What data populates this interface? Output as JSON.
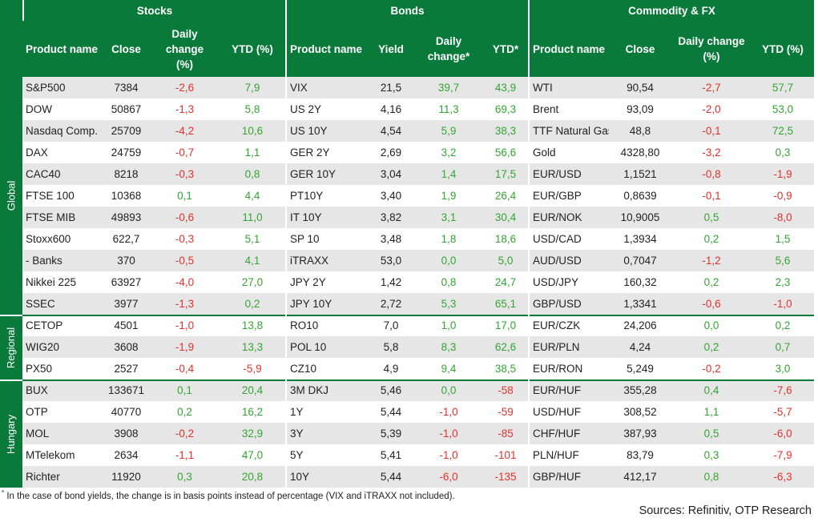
{
  "headers": {
    "stocks": "Stocks",
    "bonds": "Bonds",
    "commodity": "Commodity & FX",
    "stocks_cols": [
      "Product name",
      "Close",
      "Daily change (%)",
      "YTD (%)"
    ],
    "bonds_cols": [
      "Product name",
      "Yield",
      "Daily change*",
      "YTD*"
    ],
    "fx_cols": [
      "Product name",
      "Close",
      "Daily change (%)",
      "YTD (%)"
    ]
  },
  "groups": [
    {
      "label": "Global",
      "rows": [
        0,
        1,
        2,
        3,
        4,
        5,
        6,
        7,
        8,
        9,
        10
      ]
    },
    {
      "label": "Regional",
      "rows": [
        11,
        12,
        13
      ]
    },
    {
      "label": "Hungary",
      "rows": [
        14,
        15,
        16,
        17,
        18
      ]
    }
  ],
  "rows": [
    {
      "s": [
        "S&P500",
        "7384",
        "-2,6",
        "7,9"
      ],
      "b": [
        "VIX",
        "21,5",
        "39,7",
        "43,9"
      ],
      "f": [
        "WTI",
        "90,54",
        "-2,7",
        "57,7"
      ]
    },
    {
      "s": [
        "DOW",
        "50867",
        "-1,3",
        "5,8"
      ],
      "b": [
        "US 2Y",
        "4,16",
        "11,3",
        "69,3"
      ],
      "f": [
        "Brent",
        "93,09",
        "-2,0",
        "53,0"
      ]
    },
    {
      "s": [
        "Nasdaq Comp.",
        "25709",
        "-4,2",
        "10,6"
      ],
      "b": [
        "US 10Y",
        "4,54",
        "5,9",
        "38,3"
      ],
      "f": [
        "TTF Natural Gas",
        "48,8",
        "-0,1",
        "72,5"
      ]
    },
    {
      "s": [
        "DAX",
        "24759",
        "-0,7",
        "1,1"
      ],
      "b": [
        "GER 2Y",
        "2,69",
        "3,2",
        "56,6"
      ],
      "f": [
        "Gold",
        "4328,80",
        "-3,2",
        "0,3"
      ]
    },
    {
      "s": [
        "CAC40",
        "8218",
        "-0,3",
        "0,8"
      ],
      "b": [
        "GER 10Y",
        "3,04",
        "1,4",
        "17,5"
      ],
      "f": [
        "EUR/USD",
        "1,1521",
        "-0,8",
        "-1,9"
      ]
    },
    {
      "s": [
        "FTSE 100",
        "10368",
        "0,1",
        "4,4"
      ],
      "b": [
        "PT10Y",
        "3,40",
        "1,9",
        "26,4"
      ],
      "f": [
        "EUR/GBP",
        "0,8639",
        "-0,1",
        "-0,9"
      ]
    },
    {
      "s": [
        "FTSE MIB",
        "49893",
        "-0,6",
        "11,0"
      ],
      "b": [
        "IT 10Y",
        "3,82",
        "3,1",
        "30,4"
      ],
      "f": [
        "EUR/NOK",
        "10,9005",
        "0,5",
        "-8,0"
      ]
    },
    {
      "s": [
        "Stoxx600",
        "622,7",
        "-0,3",
        "5,1"
      ],
      "b": [
        "SP 10",
        "3,48",
        "1,8",
        "18,6"
      ],
      "f": [
        "USD/CAD",
        "1,3934",
        "0,2",
        "1,5"
      ]
    },
    {
      "s": [
        "  - Banks",
        "370",
        "-0,5",
        "4,1"
      ],
      "b": [
        "iTRAXX",
        "53,0",
        "0,0",
        "5,0"
      ],
      "f": [
        "AUD/USD",
        "0,7047",
        "-1,2",
        "5,6"
      ]
    },
    {
      "s": [
        "Nikkei 225",
        "63927",
        "-4,0",
        "27,0"
      ],
      "b": [
        "JPY 2Y",
        "1,42",
        "0,8",
        "24,7"
      ],
      "f": [
        "USD/JPY",
        "160,32",
        "0,2",
        "2,3"
      ]
    },
    {
      "s": [
        "SSEC",
        "3977",
        "-1,3",
        "0,2"
      ],
      "b": [
        "JPY 10Y",
        "2,72",
        "5,3",
        "65,1"
      ],
      "f": [
        "GBP/USD",
        "1,3341",
        "-0,6",
        "-1,0"
      ]
    },
    {
      "s": [
        "CETOP",
        "4501",
        "-1,0",
        "13,8"
      ],
      "b": [
        "RO10",
        "7,0",
        "1,0",
        "17,0"
      ],
      "f": [
        "EUR/CZK",
        "24,206",
        "0,0",
        "0,2"
      ]
    },
    {
      "s": [
        "WIG20",
        "3608",
        "-1,9",
        "13,3"
      ],
      "b": [
        "POL 10",
        "5,8",
        "8,3",
        "62,6"
      ],
      "f": [
        "EUR/PLN",
        "4,24",
        "0,2",
        "0,7"
      ]
    },
    {
      "s": [
        "PX50",
        "2527",
        "-0,4",
        "-5,9"
      ],
      "b": [
        "CZ10",
        "4,9",
        "9,4",
        "38,5"
      ],
      "f": [
        "EUR/RON",
        "5,249",
        "-0,2",
        "3,0"
      ]
    },
    {
      "s": [
        "BUX",
        "133671",
        "0,1",
        "20,4"
      ],
      "b": [
        "3M DKJ",
        "5,46",
        "0,0",
        "-58"
      ],
      "f": [
        "EUR/HUF",
        "355,28",
        "0,4",
        "-7,6"
      ]
    },
    {
      "s": [
        "OTP",
        "40770",
        "0,2",
        "16,2"
      ],
      "b": [
        "1Y",
        "5,44",
        "-1,0",
        "-59"
      ],
      "f": [
        "USD/HUF",
        "308,52",
        "1,1",
        "-5,7"
      ]
    },
    {
      "s": [
        "MOL",
        "3908",
        "-0,2",
        "32,9"
      ],
      "b": [
        "3Y",
        "5,39",
        "-1,0",
        "-85"
      ],
      "f": [
        "CHF/HUF",
        "387,93",
        "0,5",
        "-6,0"
      ]
    },
    {
      "s": [
        "MTelekom",
        "2634",
        "-1,1",
        "47,0"
      ],
      "b": [
        "5Y",
        "5,41",
        "-1,0",
        "-101"
      ],
      "f": [
        "PLN/HUF",
        "83,79",
        "0,3",
        "-7,9"
      ]
    },
    {
      "s": [
        "Richter",
        "11920",
        "0,3",
        "20,8"
      ],
      "b": [
        "10Y",
        "5,44",
        "-6,0",
        "-135"
      ],
      "f": [
        "GBP/HUF",
        "412,17",
        "0,8",
        "-6,3"
      ]
    }
  ],
  "footnote_mark": "*",
  "footnote": "In the case of bond yields, the change is in basis points instead of percentage (VIX and iTRAXX not included).",
  "sources": "Sources: Refinitiv, OTP Research",
  "colors": {
    "header_green": "#0a7a3a",
    "negative": "#e3312d",
    "positive": "#33a532",
    "row_shade": "#e6e6e6"
  }
}
